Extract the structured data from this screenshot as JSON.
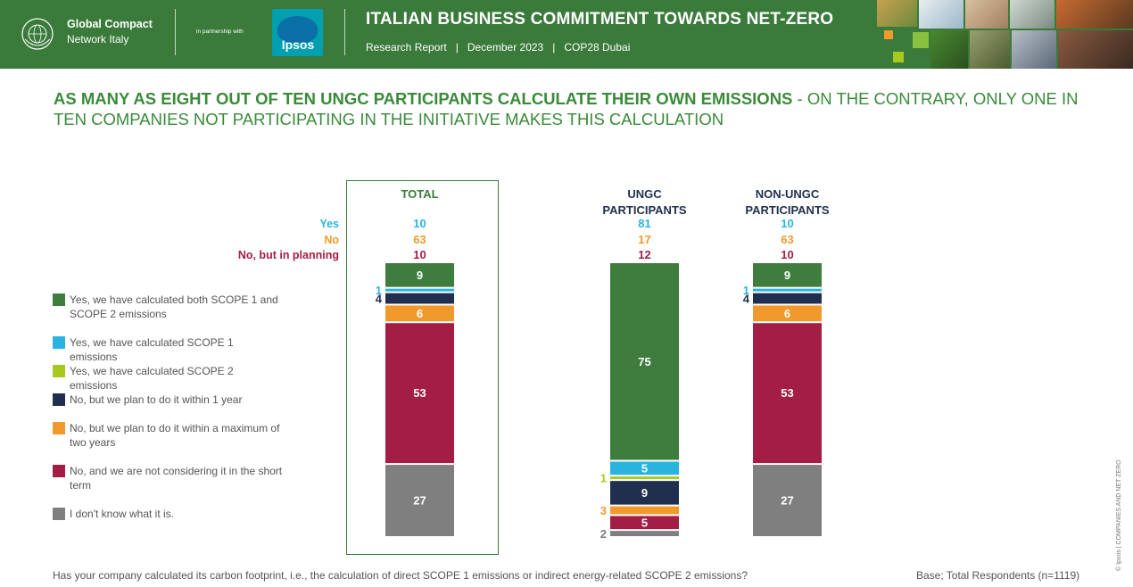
{
  "header": {
    "org_name_line1": "Global Compact",
    "org_name_line2": "Network Italy",
    "partnership_text": "in partnership with",
    "partner_logo_text": "Ipsos",
    "title": "ITALIAN BUSINESS COMMITMENT TOWARDS NET-ZERO",
    "subtitle": "Research Report   |   December 2023   |   COP28 Dubai",
    "brand_color": "#3a7a3a"
  },
  "headline": {
    "bold": "AS MANY AS EIGHT OUT OF TEN UNGC PARTICIPANTS CALCULATE THEIR OWN EMISSIONS",
    "regular": " - ON THE CONTRARY, ONLY ONE IN TEN COMPANIES NOT PARTICIPATING IN THE INITIATIVE MAKES THIS CALCULATION"
  },
  "chart_data": {
    "type": "bar",
    "stacked": true,
    "orientation": "vertical",
    "categories": [
      "TOTAL",
      "UNGC PARTICIPANTS",
      "NON-UNGC PARTICIPANTS"
    ],
    "summary_rows": [
      {
        "label": "Yes",
        "color": "#2bb3e0",
        "values": [
          10,
          81,
          10
        ]
      },
      {
        "label": "No",
        "color": "#f09a2e",
        "values": [
          63,
          17,
          63
        ]
      },
      {
        "label": "No, but in planning",
        "color": "#a31d44",
        "values": [
          10,
          12,
          10
        ]
      }
    ],
    "series": [
      {
        "name": "Yes, we have calculated both SCOPE 1 and SCOPE 2 emissions",
        "color": "#3f7d3f",
        "values": [
          9,
          75,
          9
        ]
      },
      {
        "name": "Yes, we have calculated SCOPE 1 emissions",
        "color": "#2bb3e0",
        "values": [
          1,
          5,
          1
        ]
      },
      {
        "name": "Yes, we have calculated SCOPE 2 emissions",
        "color": "#a8c820",
        "values": [
          0,
          1,
          0
        ]
      },
      {
        "name": "No, but we plan to do it within 1 year",
        "color": "#1f2f4d",
        "values": [
          4,
          9,
          4
        ]
      },
      {
        "name": "No, but we plan to do it within a maximum of two years",
        "color": "#f09a2e",
        "values": [
          6,
          3,
          6
        ]
      },
      {
        "name": "No, and we are not considering it in the short term",
        "color": "#a31d44",
        "values": [
          53,
          5,
          53
        ]
      },
      {
        "name": "I don't know what it is.",
        "color": "#7f7f7f",
        "values": [
          27,
          2,
          27
        ]
      }
    ],
    "segment_labels": [
      [
        "9",
        "1",
        "",
        "4",
        "6",
        "53",
        "27"
      ],
      [
        "75",
        "5",
        "1",
        "9",
        "3",
        "5",
        "2"
      ],
      [
        "9",
        "1",
        "",
        "4",
        "6",
        "53",
        "27"
      ]
    ],
    "ylim": [
      0,
      100
    ],
    "legend_position": "left"
  },
  "footer": {
    "question": "Has your company calculated its carbon footprint, i.e., the calculation of direct SCOPE 1 emissions or indirect energy-related SCOPE 2 emissions?",
    "base": "Base; Total Respondents (n=1119)",
    "side_copyright": "© Ipsos | COMPANIES AND NET ZERO"
  }
}
